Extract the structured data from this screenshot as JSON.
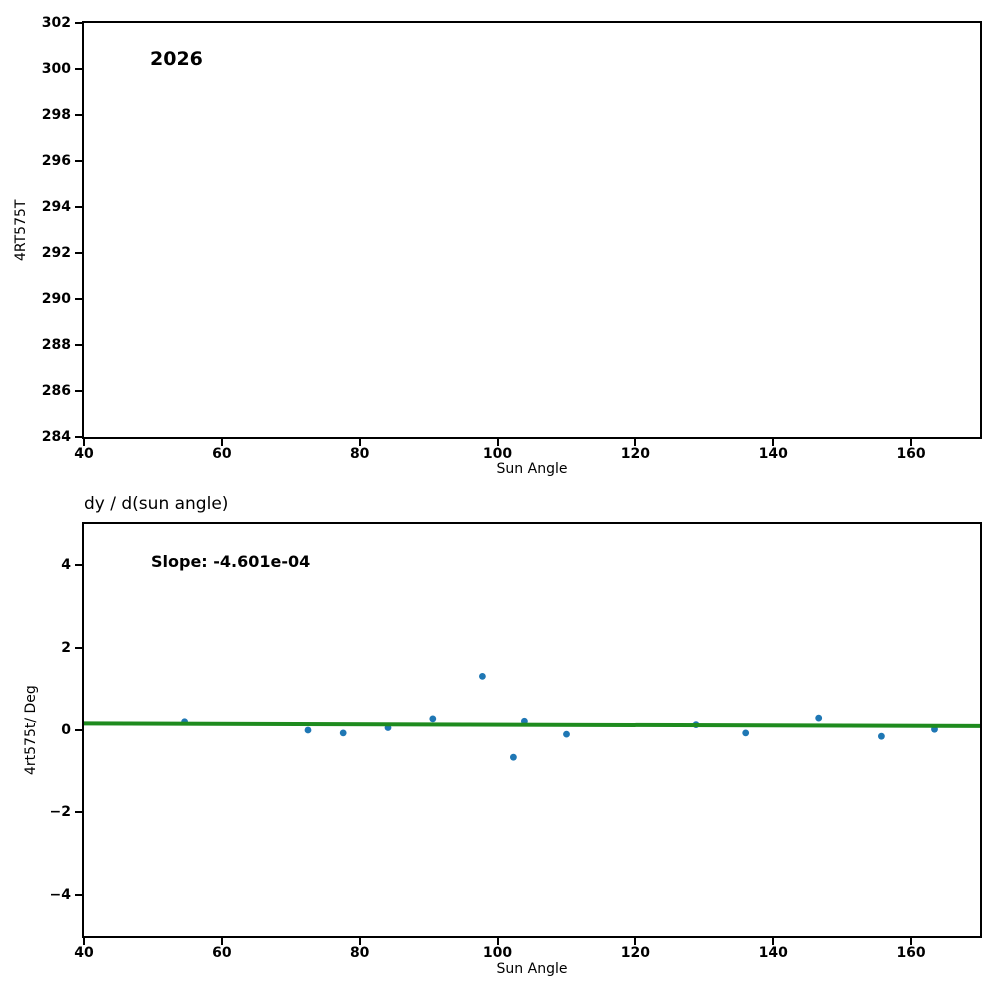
{
  "figure": {
    "background_color": "#ffffff",
    "axis_color": "#000000"
  },
  "chart_data": [
    {
      "type": "scatter",
      "title": "",
      "annotation": "2026",
      "xlabel": "Sun Angle",
      "ylabel": "4RT575T",
      "xlim": [
        40,
        170
      ],
      "ylim": [
        284,
        302
      ],
      "xticks": [
        40,
        60,
        80,
        100,
        120,
        140,
        160
      ],
      "xtick_labels": [
        "40",
        "60",
        "80",
        "100",
        "120",
        "140",
        "160"
      ],
      "yticks": [
        302,
        300,
        298,
        296,
        294,
        292,
        290,
        288,
        286,
        284
      ],
      "ytick_labels": [
        "302",
        "300",
        "298",
        "296",
        "294",
        "292",
        "290",
        "288",
        "286",
        "284"
      ],
      "grid": false,
      "legend": null,
      "points": [],
      "point_color": "#1f77b4"
    },
    {
      "type": "scatter",
      "title": "dy / d(sun angle)",
      "annotation": "Slope: -4.601e-04",
      "slope": -0.0004601,
      "xlabel": "Sun Angle",
      "ylabel": "4rt575t/ Deg",
      "xlim": [
        40,
        170
      ],
      "ylim": [
        -5,
        5
      ],
      "xticks": [
        40,
        60,
        80,
        100,
        120,
        140,
        160
      ],
      "xtick_labels": [
        "40",
        "60",
        "80",
        "100",
        "120",
        "140",
        "160"
      ],
      "yticks": [
        4,
        2,
        0,
        -2,
        -4
      ],
      "ytick_labels": [
        "4",
        "2",
        "0",
        "−2",
        "−4"
      ],
      "grid": false,
      "legend": null,
      "points": [
        [
          54.6,
          0.2
        ],
        [
          72.5,
          0.0
        ],
        [
          77.6,
          -0.07
        ],
        [
          84.1,
          0.06
        ],
        [
          90.6,
          0.27
        ],
        [
          97.8,
          1.3
        ],
        [
          102.3,
          -0.66
        ],
        [
          103.9,
          0.21
        ],
        [
          110.0,
          -0.1
        ],
        [
          128.8,
          0.13
        ],
        [
          136.0,
          -0.07
        ],
        [
          146.6,
          0.29
        ],
        [
          155.7,
          -0.15
        ],
        [
          163.4,
          0.02
        ]
      ],
      "point_color": "#1f77b4",
      "trend_line": {
        "x_start": 40,
        "y_start": 0.16,
        "x_end": 170,
        "y_end": 0.1,
        "color": "#1e8b1e",
        "width": 4
      }
    }
  ]
}
